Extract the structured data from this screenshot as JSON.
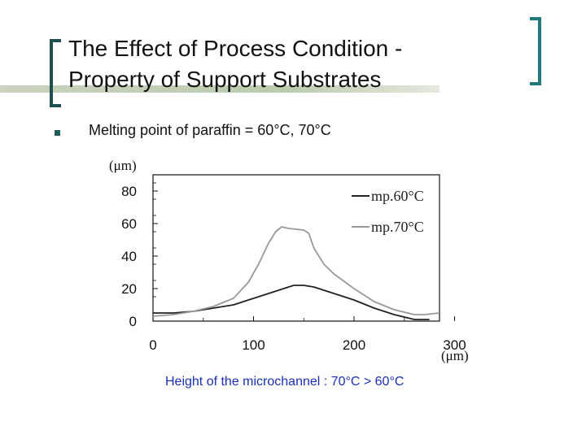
{
  "slide": {
    "title_line1": "The Effect of Process Condition -",
    "title_line2": "Property of Support Substrates",
    "bullet": "Melting point of paraffin = 60°C, 70°C",
    "caption": "Height of the microchannel : 70°C > 60°C",
    "colors": {
      "accent": "#1f5b5b",
      "caption": "#1a2fb8",
      "series_60": "#222222",
      "series_70": "#999999"
    }
  },
  "chart_data": {
    "type": "line",
    "title": "",
    "xlabel": "(μm)",
    "ylabel": "(μm)",
    "xlim": [
      0,
      285
    ],
    "ylim": [
      0,
      90
    ],
    "x_ticks": [
      0,
      100,
      200,
      300
    ],
    "y_ticks": [
      0,
      20,
      40,
      60,
      80
    ],
    "legend_position": "top-right",
    "series": [
      {
        "name": "mp.60°C",
        "x": [
          0,
          20,
          40,
          60,
          80,
          100,
          115,
          130,
          140,
          150,
          160,
          180,
          200,
          220,
          240,
          260,
          275
        ],
        "y": [
          5,
          5,
          6,
          8,
          10,
          14,
          17,
          20,
          22,
          22,
          21,
          17,
          13,
          8,
          4,
          1,
          1
        ]
      },
      {
        "name": "mp.70°C",
        "x": [
          0,
          20,
          40,
          60,
          80,
          95,
          105,
          115,
          122,
          128,
          135,
          150,
          155,
          160,
          170,
          180,
          200,
          220,
          240,
          260,
          270,
          285
        ],
        "y": [
          3,
          4,
          6,
          9,
          14,
          24,
          35,
          48,
          55,
          58,
          57,
          56,
          54,
          45,
          35,
          29,
          20,
          12,
          7,
          4,
          4,
          5
        ]
      }
    ]
  }
}
